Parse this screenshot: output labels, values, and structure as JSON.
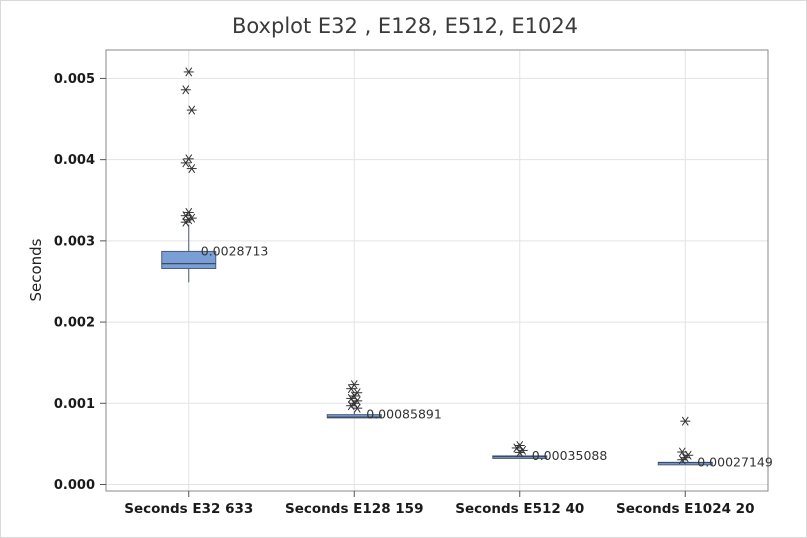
{
  "chart_data": {
    "type": "boxplot",
    "title": "Boxplot E32 , E128, E512, E1024",
    "ylabel": "Seconds",
    "xlabel": "",
    "ylim": [
      -8e-05,
      0.00535
    ],
    "yticks": [
      0.0,
      0.001,
      0.002,
      0.003,
      0.004,
      0.005
    ],
    "ytick_labels": [
      "0.000",
      "0.001",
      "0.002",
      "0.003",
      "0.004",
      "0.005"
    ],
    "grid": true,
    "box_color": "#7a9fd6",
    "box_edge_color": "#4a5a78",
    "outlier_marker": "asterisk",
    "categories": [
      "Seconds E32 633",
      "Seconds E128 159",
      "Seconds E512 40",
      "Seconds E1024 20"
    ],
    "series": [
      {
        "whisker_low": 0.00249,
        "q1": 0.00266,
        "median": 0.00272,
        "q3": 0.00287,
        "whisker_high": 0.0032,
        "label": "0.0028713",
        "label_value": 0.0028713,
        "outliers": [
          0.00508,
          0.00486,
          0.00461,
          0.00401,
          0.00396,
          0.00389,
          0.00335,
          0.00331,
          0.00328,
          0.00326,
          0.00323
        ]
      },
      {
        "whisker_low": 0.000818,
        "q1": 0.00082,
        "median": 0.00083,
        "q3": 0.00086,
        "whisker_high": 0.0009,
        "label": "0.00085891",
        "label_value": 0.00085891,
        "outliers": [
          0.00123,
          0.00118,
          0.00113,
          0.00109,
          0.00106,
          0.00103,
          0.001,
          0.00097,
          0.00094
        ]
      },
      {
        "whisker_low": 0.000335,
        "q1": 0.00034,
        "median": 0.000345,
        "q3": 0.000352,
        "whisker_high": 0.000362,
        "label": "0.00035088",
        "label_value": 0.00035088,
        "outliers": [
          0.00048,
          0.00045,
          0.00042,
          0.000395
        ]
      },
      {
        "whisker_low": 0.000265,
        "q1": 0.000268,
        "median": 0.00027,
        "q3": 0.000273,
        "whisker_high": 0.000275,
        "label": "0.00027149",
        "label_value": 0.00027149,
        "outliers": [
          0.00078,
          0.0004,
          0.00036,
          0.00033,
          0.000305
        ]
      }
    ]
  }
}
